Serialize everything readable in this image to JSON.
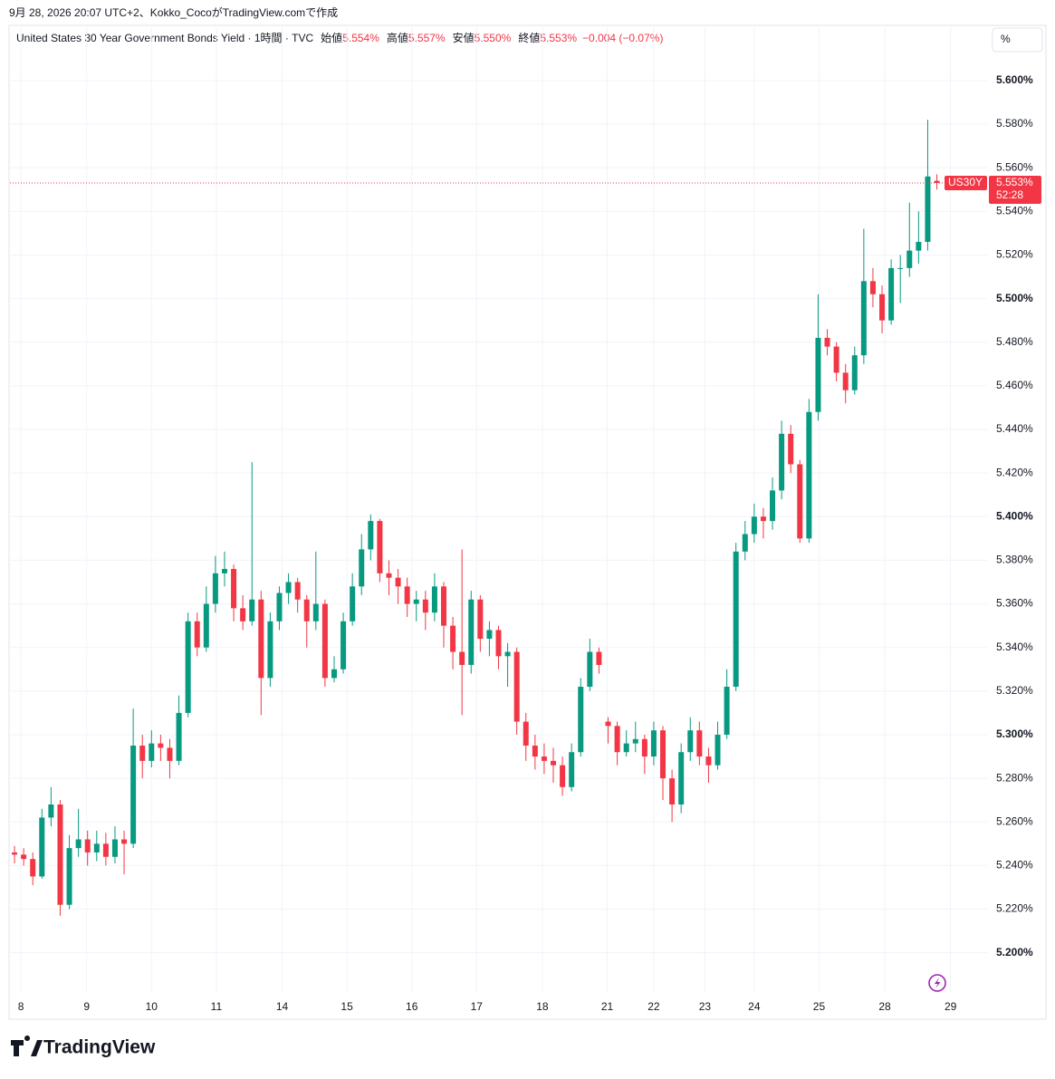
{
  "header": "9月 28, 2026 20:07 UTC+2、Kokko_CocoがTradingView.comで作成",
  "unit_button": "%",
  "footer": "TradingView",
  "chart_data": {
    "type": "candlestick",
    "title": "United States 30 Year Government Bonds Yield · 1時間 · TVC",
    "legend_items": [
      {
        "label": "始値",
        "value": "5.554%"
      },
      {
        "label": "高値",
        "value": "5.557%"
      },
      {
        "label": "安値",
        "value": "5.550%"
      },
      {
        "label": "終値",
        "value": "5.553%"
      }
    ],
    "change": "−0.004 (−0.07%)",
    "price_tag": {
      "symbol": "US30Y",
      "value": "5.553%",
      "countdown": "52:28"
    },
    "up_color": "#089981",
    "down_color": "#f23645",
    "grid": true,
    "ylim": [
      5.182,
      5.612
    ],
    "yticks": [
      {
        "value": 5.2,
        "label": "5.200%"
      },
      {
        "value": 5.22,
        "label": "5.220%"
      },
      {
        "value": 5.24,
        "label": "5.240%"
      },
      {
        "value": 5.26,
        "label": "5.260%"
      },
      {
        "value": 5.28,
        "label": "5.280%"
      },
      {
        "value": 5.3,
        "label": "5.300%"
      },
      {
        "value": 5.32,
        "label": "5.320%"
      },
      {
        "value": 5.34,
        "label": "5.340%"
      },
      {
        "value": 5.36,
        "label": "5.360%"
      },
      {
        "value": 5.38,
        "label": "5.380%"
      },
      {
        "value": 5.4,
        "label": "5.400%"
      },
      {
        "value": 5.42,
        "label": "5.420%"
      },
      {
        "value": 5.44,
        "label": "5.440%"
      },
      {
        "value": 5.46,
        "label": "5.460%"
      },
      {
        "value": 5.48,
        "label": "5.480%"
      },
      {
        "value": 5.5,
        "label": "5.500%"
      },
      {
        "value": 5.52,
        "label": "5.520%"
      },
      {
        "value": 5.54,
        "label": "5.540%"
      },
      {
        "value": 5.56,
        "label": "5.560%"
      },
      {
        "value": 5.58,
        "label": "5.580%"
      },
      {
        "value": 5.6,
        "label": "5.600%"
      }
    ],
    "xlim": [
      0,
      107
    ],
    "xticks": [
      {
        "value": 1.2,
        "label": "8"
      },
      {
        "value": 8.4,
        "label": "9"
      },
      {
        "value": 15.5,
        "label": "10"
      },
      {
        "value": 22.6,
        "label": "11"
      },
      {
        "value": 29.8,
        "label": "14"
      },
      {
        "value": 36.9,
        "label": "15"
      },
      {
        "value": 44,
        "label": "16"
      },
      {
        "value": 51.1,
        "label": "17"
      },
      {
        "value": 58.3,
        "label": "18"
      },
      {
        "value": 65.4,
        "label": "21"
      },
      {
        "value": 70.5,
        "label": "22"
      },
      {
        "value": 76.1,
        "label": "23"
      },
      {
        "value": 81.5,
        "label": "24"
      },
      {
        "value": 88.6,
        "label": "25"
      },
      {
        "value": 95.8,
        "label": "28"
      },
      {
        "value": 103,
        "label": "29"
      }
    ],
    "candles": [
      [
        5.246,
        5.249,
        5.241,
        5.245
      ],
      [
        5.245,
        5.248,
        5.24,
        5.243
      ],
      [
        5.243,
        5.246,
        5.231,
        5.235
      ],
      [
        5.235,
        5.266,
        5.234,
        5.262
      ],
      [
        5.262,
        5.276,
        5.258,
        5.268
      ],
      [
        5.268,
        5.27,
        5.217,
        5.222
      ],
      [
        5.222,
        5.254,
        5.22,
        5.248
      ],
      [
        5.248,
        5.266,
        5.244,
        5.252
      ],
      [
        5.252,
        5.256,
        5.24,
        5.246
      ],
      [
        5.246,
        5.256,
        5.242,
        5.25
      ],
      [
        5.25,
        5.255,
        5.24,
        5.244
      ],
      [
        5.244,
        5.258,
        5.241,
        5.252
      ],
      [
        5.252,
        5.256,
        5.236,
        5.25
      ],
      [
        5.25,
        5.312,
        5.248,
        5.295
      ],
      [
        5.295,
        5.3,
        5.28,
        5.288
      ],
      [
        5.288,
        5.302,
        5.285,
        5.296
      ],
      [
        5.296,
        5.3,
        5.288,
        5.294
      ],
      [
        5.294,
        5.298,
        5.28,
        5.288
      ],
      [
        5.288,
        5.318,
        5.286,
        5.31
      ],
      [
        5.31,
        5.356,
        5.308,
        5.352
      ],
      [
        5.352,
        5.356,
        5.336,
        5.34
      ],
      [
        5.34,
        5.368,
        5.338,
        5.36
      ],
      [
        5.36,
        5.382,
        5.356,
        5.374
      ],
      [
        5.374,
        5.384,
        5.368,
        5.376
      ],
      [
        5.376,
        5.378,
        5.352,
        5.358
      ],
      [
        5.358,
        5.364,
        5.348,
        5.352
      ],
      [
        5.352,
        5.425,
        5.35,
        5.362
      ],
      [
        5.362,
        5.366,
        5.309,
        5.326
      ],
      [
        5.326,
        5.356,
        5.322,
        5.352
      ],
      [
        5.352,
        5.368,
        5.348,
        5.365
      ],
      [
        5.365,
        5.374,
        5.36,
        5.37
      ],
      [
        5.37,
        5.372,
        5.356,
        5.362
      ],
      [
        5.362,
        5.364,
        5.34,
        5.352
      ],
      [
        5.352,
        5.384,
        5.348,
        5.36
      ],
      [
        5.36,
        5.362,
        5.322,
        5.326
      ],
      [
        5.326,
        5.336,
        5.324,
        5.33
      ],
      [
        5.33,
        5.356,
        5.328,
        5.352
      ],
      [
        5.352,
        5.374,
        5.35,
        5.368
      ],
      [
        5.368,
        5.392,
        5.364,
        5.385
      ],
      [
        5.385,
        5.401,
        5.38,
        5.398
      ],
      [
        5.398,
        5.399,
        5.37,
        5.374
      ],
      [
        5.374,
        5.38,
        5.364,
        5.372
      ],
      [
        5.372,
        5.376,
        5.36,
        5.368
      ],
      [
        5.368,
        5.372,
        5.354,
        5.36
      ],
      [
        5.36,
        5.366,
        5.352,
        5.362
      ],
      [
        5.362,
        5.366,
        5.348,
        5.356
      ],
      [
        5.356,
        5.374,
        5.352,
        5.368
      ],
      [
        5.368,
        5.37,
        5.34,
        5.35
      ],
      [
        5.35,
        5.354,
        5.33,
        5.338
      ],
      [
        5.338,
        5.385,
        5.309,
        5.332
      ],
      [
        5.332,
        5.366,
        5.328,
        5.362
      ],
      [
        5.362,
        5.364,
        5.338,
        5.344
      ],
      [
        5.344,
        5.352,
        5.336,
        5.348
      ],
      [
        5.348,
        5.35,
        5.33,
        5.336
      ],
      [
        5.336,
        5.342,
        5.322,
        5.338
      ],
      [
        5.338,
        5.34,
        5.3,
        5.306
      ],
      [
        5.306,
        5.31,
        5.288,
        5.295
      ],
      [
        5.295,
        5.3,
        5.284,
        5.29
      ],
      [
        5.29,
        5.296,
        5.282,
        5.288
      ],
      [
        5.288,
        5.294,
        5.278,
        5.286
      ],
      [
        5.286,
        5.29,
        5.272,
        5.276
      ],
      [
        5.276,
        5.296,
        5.274,
        5.292
      ],
      [
        5.292,
        5.326,
        5.29,
        5.322
      ],
      [
        5.322,
        5.344,
        5.32,
        5.338
      ],
      [
        5.338,
        5.34,
        5.328,
        5.332
      ],
      [
        5.306,
        5.308,
        5.296,
        5.304
      ],
      [
        5.304,
        5.306,
        5.286,
        5.292
      ],
      [
        5.292,
        5.302,
        5.29,
        5.296
      ],
      [
        5.296,
        5.306,
        5.292,
        5.298
      ],
      [
        5.298,
        5.3,
        5.282,
        5.29
      ],
      [
        5.29,
        5.306,
        5.286,
        5.302
      ],
      [
        5.302,
        5.304,
        5.27,
        5.28
      ],
      [
        5.28,
        5.284,
        5.26,
        5.268
      ],
      [
        5.268,
        5.296,
        5.264,
        5.292
      ],
      [
        5.292,
        5.308,
        5.288,
        5.302
      ],
      [
        5.302,
        5.306,
        5.286,
        5.29
      ],
      [
        5.29,
        5.294,
        5.278,
        5.286
      ],
      [
        5.286,
        5.306,
        5.284,
        5.3
      ],
      [
        5.3,
        5.33,
        5.298,
        5.322
      ],
      [
        5.322,
        5.388,
        5.32,
        5.384
      ],
      [
        5.384,
        5.398,
        5.38,
        5.392
      ],
      [
        5.392,
        5.406,
        5.388,
        5.4
      ],
      [
        5.4,
        5.404,
        5.39,
        5.398
      ],
      [
        5.398,
        5.418,
        5.394,
        5.412
      ],
      [
        5.412,
        5.444,
        5.408,
        5.438
      ],
      [
        5.438,
        5.442,
        5.42,
        5.424
      ],
      [
        5.424,
        5.426,
        5.388,
        5.39
      ],
      [
        5.39,
        5.454,
        5.388,
        5.448
      ],
      [
        5.448,
        5.502,
        5.444,
        5.482
      ],
      [
        5.482,
        5.486,
        5.474,
        5.478
      ],
      [
        5.478,
        5.48,
        5.462,
        5.466
      ],
      [
        5.466,
        5.47,
        5.452,
        5.458
      ],
      [
        5.458,
        5.478,
        5.456,
        5.474
      ],
      [
        5.474,
        5.532,
        5.47,
        5.508
      ],
      [
        5.508,
        5.514,
        5.496,
        5.502
      ],
      [
        5.502,
        5.506,
        5.484,
        5.49
      ],
      [
        5.49,
        5.518,
        5.488,
        5.514
      ],
      [
        5.514,
        5.52,
        5.498,
        5.514
      ],
      [
        5.514,
        5.544,
        5.51,
        5.522
      ],
      [
        5.522,
        5.54,
        5.516,
        5.526
      ],
      [
        5.526,
        5.582,
        5.522,
        5.556
      ],
      [
        5.554,
        5.557,
        5.55,
        5.553
      ]
    ]
  }
}
